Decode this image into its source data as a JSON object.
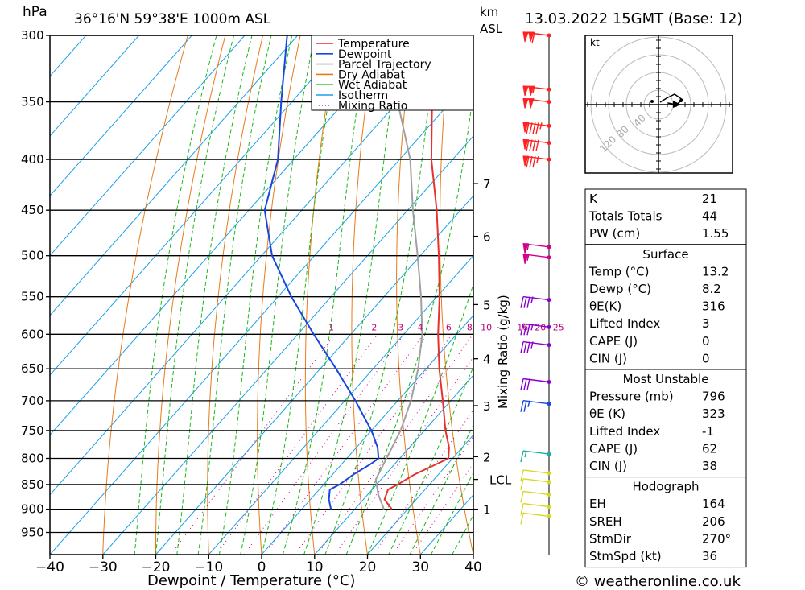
{
  "header": {
    "location": "36°16'N  59°38'E  1000m  ASL",
    "datetime": "13.03.2022  15GMT  (Base: 12)",
    "hpa_label": "hPa",
    "km_label": "km",
    "asl_label": "ASL"
  },
  "footer": {
    "credit": "© weatheronline.co.uk"
  },
  "legend": [
    {
      "label": "Temperature",
      "color": "#e83030",
      "style": "solid"
    },
    {
      "label": "Dewpoint",
      "color": "#1846e0",
      "style": "solid"
    },
    {
      "label": "Parcel Trajectory",
      "color": "#a0a0a0",
      "style": "solid"
    },
    {
      "label": "Dry Adiabat",
      "color": "#e87a18",
      "style": "solid"
    },
    {
      "label": "Wet Adiabat",
      "color": "#18b818",
      "style": "solid"
    },
    {
      "label": "Isotherm",
      "color": "#1aa0e8",
      "style": "solid"
    },
    {
      "label": "Mixing Ratio",
      "color": "#d0008a",
      "style": "dotted"
    }
  ],
  "chart_data": {
    "type": "line",
    "xlabel": "Dewpoint / Temperature (°C)",
    "ylabel": "hPa",
    "xlim": [
      -40,
      40
    ],
    "ylim": [
      1000,
      300
    ],
    "x_ticks": [
      -40,
      -30,
      -20,
      -10,
      0,
      10,
      20,
      30,
      40
    ],
    "pressure_levels": [
      300,
      350,
      400,
      450,
      500,
      550,
      600,
      650,
      700,
      750,
      800,
      850,
      900,
      950
    ],
    "km_ticks": [
      {
        "label": "7",
        "p": 423
      },
      {
        "label": "6",
        "p": 478
      },
      {
        "label": "5",
        "p": 560
      },
      {
        "label": "4",
        "p": 635
      },
      {
        "label": "3",
        "p": 708
      },
      {
        "label": "2",
        "p": 797
      },
      {
        "label": "1",
        "p": 900
      }
    ],
    "lcl": {
      "label": "LCL",
      "p": 840
    },
    "mixing_ratio_title": "Mixing Ratio (g/kg)",
    "mixing_ratio_labels": [
      "1",
      "2",
      "3",
      "4",
      "6",
      "8",
      "10",
      "16",
      "20",
      "25"
    ],
    "mixing_ratio_values": [
      1,
      2,
      3,
      4,
      6,
      8,
      10,
      16,
      20,
      25
    ],
    "series": [
      {
        "name": "Temperature",
        "color": "#e83030",
        "p": [
          900,
          880,
          860,
          850,
          830,
          810,
          800,
          780,
          750,
          700,
          650,
          600,
          550,
          500,
          450,
          400,
          350,
          300
        ],
        "t": [
          17.0,
          14.0,
          13.0,
          14.0,
          15.5,
          18.0,
          19.2,
          17.5,
          14.0,
          8.5,
          2.5,
          -3.5,
          -9.5,
          -16.5,
          -24.5,
          -34.0,
          -43.5,
          -53.0
        ]
      },
      {
        "name": "Dewpoint",
        "color": "#1846e0",
        "p": [
          900,
          880,
          860,
          850,
          830,
          810,
          800,
          780,
          750,
          700,
          650,
          600,
          550,
          500,
          450,
          400,
          350,
          300
        ],
        "t": [
          5.5,
          3.5,
          2.0,
          3.0,
          4.0,
          5.5,
          6.0,
          4.0,
          0.0,
          -8.0,
          -17.0,
          -27.0,
          -37.5,
          -48.0,
          -57.0,
          -63.0,
          -72.0,
          -82.0
        ]
      },
      {
        "name": "Parcel Trajectory",
        "color": "#a0a0a0",
        "p": [
          900,
          870,
          840,
          800,
          750,
          700,
          650,
          600,
          550,
          500,
          450,
          400,
          350,
          300
        ],
        "t": [
          15.5,
          12.0,
          9.0,
          7.5,
          5.5,
          2.5,
          -1.5,
          -6.5,
          -13.0,
          -20.5,
          -29.0,
          -38.0,
          -50.0,
          -62.0
        ]
      }
    ]
  },
  "hodograph": {
    "unit_label": "kt",
    "ring_labels": [
      "40",
      "80",
      "120"
    ]
  },
  "wind_barbs": [
    {
      "p": 300,
      "speed": 110,
      "color": "#ff2020"
    },
    {
      "p": 340,
      "speed": 105,
      "color": "#ff2020"
    },
    {
      "p": 350,
      "speed": 100,
      "color": "#ff2020"
    },
    {
      "p": 370,
      "speed": 95,
      "color": "#ff2020"
    },
    {
      "p": 385,
      "speed": 90,
      "color": "#ff2020"
    },
    {
      "p": 400,
      "speed": 85,
      "color": "#ff2020"
    },
    {
      "p": 490,
      "speed": 55,
      "color": "#d0008a"
    },
    {
      "p": 502,
      "speed": 55,
      "color": "#d0008a"
    },
    {
      "p": 554,
      "speed": 35,
      "color": "#8800cc"
    },
    {
      "p": 590,
      "speed": 35,
      "color": "#8800cc"
    },
    {
      "p": 615,
      "speed": 35,
      "color": "#8800cc"
    },
    {
      "p": 670,
      "speed": 30,
      "color": "#8800cc"
    },
    {
      "p": 705,
      "speed": 25,
      "color": "#1846e0"
    },
    {
      "p": 792,
      "speed": 15,
      "color": "#18b0a0"
    },
    {
      "p": 828,
      "speed": 10,
      "color": "#d8d820"
    },
    {
      "p": 845,
      "speed": 10,
      "color": "#d8d820"
    },
    {
      "p": 870,
      "speed": 10,
      "color": "#d8d820"
    },
    {
      "p": 895,
      "speed": 10,
      "color": "#d8d820"
    },
    {
      "p": 915,
      "speed": 10,
      "color": "#d8d820"
    }
  ],
  "indices": {
    "basic": [
      {
        "label": "K",
        "value": "21"
      },
      {
        "label": "Totals Totals",
        "value": "44"
      },
      {
        "label": "PW (cm)",
        "value": "1.55"
      }
    ],
    "surface_title": "Surface",
    "surface": [
      {
        "label": "Temp (°C)",
        "value": "13.2"
      },
      {
        "label": "Dewp (°C)",
        "value": "8.2"
      },
      {
        "label": "θE(K)",
        "value": "316"
      },
      {
        "label": "Lifted Index",
        "value": "3"
      },
      {
        "label": "CAPE (J)",
        "value": "0"
      },
      {
        "label": "CIN (J)",
        "value": "0"
      }
    ],
    "unstable_title": "Most Unstable",
    "unstable": [
      {
        "label": "Pressure (mb)",
        "value": "796"
      },
      {
        "label": "θE (K)",
        "value": "323"
      },
      {
        "label": "Lifted Index",
        "value": "-1"
      },
      {
        "label": "CAPE (J)",
        "value": "62"
      },
      {
        "label": "CIN (J)",
        "value": "38"
      }
    ],
    "hodograph_title": "Hodograph",
    "hodo": [
      {
        "label": "EH",
        "value": "164"
      },
      {
        "label": "SREH",
        "value": "206"
      },
      {
        "label": "StmDir",
        "value": "270°"
      },
      {
        "label": "StmSpd (kt)",
        "value": "36"
      }
    ]
  }
}
